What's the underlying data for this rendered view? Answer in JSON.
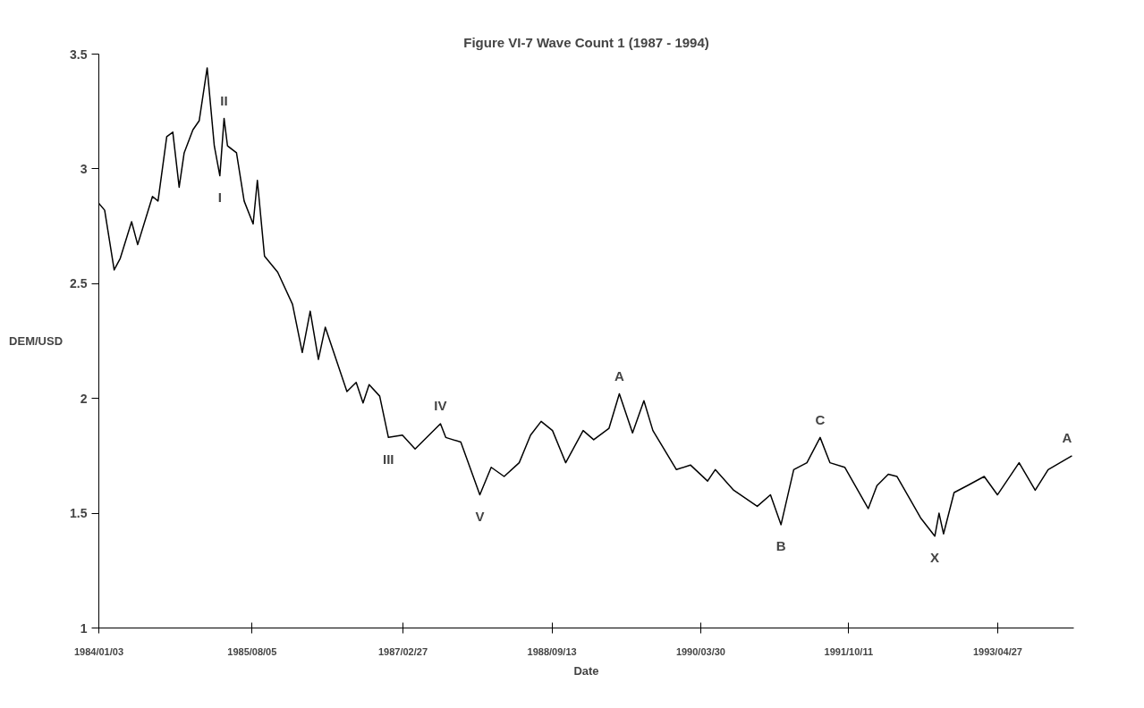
{
  "chart_data": {
    "type": "line",
    "title": "Figure VI-7 Wave Count 1 (1987 - 1994)",
    "xlabel": "Date",
    "ylabel": "DEM/USD",
    "x": [
      "1984-01-03",
      "1984-01-25",
      "1984-03-01",
      "1984-03-24",
      "1984-05-06",
      "1984-05-29",
      "1984-07-24",
      "1984-08-14",
      "1984-09-16",
      "1984-10-09",
      "1984-11-02",
      "1984-11-21",
      "1984-12-24",
      "1985-01-17",
      "1985-02-16",
      "1985-03-15",
      "1985-04-05",
      "1985-04-21",
      "1985-05-04",
      "1985-06-07",
      "1985-07-06",
      "1985-08-09",
      "1985-08-25",
      "1985-09-21",
      "1985-11-10",
      "1986-01-05",
      "1986-02-11",
      "1986-03-13",
      "1986-04-13",
      "1986-05-09",
      "1986-07-30",
      "1986-09-03",
      "1986-09-29",
      "1986-10-22",
      "1986-12-01",
      "1987-01-03",
      "1987-02-25",
      "1987-04-14",
      "1987-07-19",
      "1987-08-08",
      "1987-10-04",
      "1987-12-15",
      "1988-01-27",
      "1988-03-16",
      "1988-05-12",
      "1988-06-24",
      "1988-08-03",
      "1988-09-15",
      "1988-11-04",
      "1989-01-09",
      "1989-02-18",
      "1989-04-17",
      "1989-05-26",
      "1989-07-15",
      "1989-08-27",
      "1989-09-30",
      "1989-12-28",
      "1990-02-19",
      "1990-04-25",
      "1990-05-24",
      "1990-08-02",
      "1990-10-30",
      "1990-12-19",
      "1991-01-28",
      "1991-03-17",
      "1991-05-06",
      "1991-06-25",
      "1991-08-01",
      "1991-09-26",
      "1991-12-24",
      "1992-01-26",
      "1992-03-09",
      "1992-04-11",
      "1992-07-09",
      "1992-09-01",
      "1992-09-17",
      "1992-10-04",
      "1992-11-13",
      "1993-01-02",
      "1993-03-07",
      "1993-04-26",
      "1993-07-17",
      "1993-09-16",
      "1993-11-04",
      "1994-02-02"
    ],
    "series": [
      {
        "color": "#000000",
        "values": [
          2.85,
          2.82,
          2.56,
          2.61,
          2.77,
          2.67,
          2.88,
          2.86,
          3.14,
          3.16,
          2.92,
          3.07,
          3.17,
          3.21,
          3.44,
          3.1,
          2.97,
          3.22,
          3.1,
          3.07,
          2.86,
          2.76,
          2.95,
          2.62,
          2.55,
          2.41,
          2.2,
          2.38,
          2.17,
          2.31,
          2.03,
          2.07,
          1.98,
          2.06,
          2.01,
          1.83,
          1.84,
          1.78,
          1.89,
          1.83,
          1.81,
          1.58,
          1.7,
          1.66,
          1.72,
          1.84,
          1.9,
          1.86,
          1.72,
          1.86,
          1.82,
          1.87,
          2.02,
          1.85,
          1.99,
          1.86,
          1.69,
          1.71,
          1.64,
          1.69,
          1.6,
          1.53,
          1.58,
          1.45,
          1.69,
          1.72,
          1.83,
          1.72,
          1.7,
          1.52,
          1.62,
          1.67,
          1.66,
          1.48,
          1.4,
          1.5,
          1.41,
          1.59,
          1.62,
          1.66,
          1.58,
          1.72,
          1.6,
          1.69,
          1.75
        ]
      }
    ],
    "xlim": [
      "1984-01-03",
      "1994-02-09"
    ],
    "xticks": [
      {
        "value": "1984-01-03",
        "label": "1984/01/03"
      },
      {
        "value": "1985-08-05",
        "label": "1985/08/05"
      },
      {
        "value": "1987-02-27",
        "label": "1987/02/27"
      },
      {
        "value": "1988-09-13",
        "label": "1988/09/13"
      },
      {
        "value": "1990-03-30",
        "label": "1990/03/30"
      },
      {
        "value": "1991-10-11",
        "label": "1991/10/11"
      },
      {
        "value": "1993-04-27",
        "label": "1993/04/27"
      }
    ],
    "ylim": [
      1,
      3.5
    ],
    "yticks": [
      1,
      1.5,
      2,
      2.5,
      3,
      3.5
    ],
    "annotations": [
      {
        "text": "I",
        "x": "1985-04-05",
        "y": 2.97
      },
      {
        "text": "II",
        "x": "1985-04-21",
        "y": 3.22
      },
      {
        "text": "III",
        "x": "1987-01-03",
        "y": 1.83
      },
      {
        "text": "IV",
        "x": "1987-07-19",
        "y": 1.89
      },
      {
        "text": "V",
        "x": "1987-12-15",
        "y": 1.58
      },
      {
        "text": "A",
        "x": "1989-05-26",
        "y": 2.02
      },
      {
        "text": "B",
        "x": "1991-01-28",
        "y": 1.45
      },
      {
        "text": "C",
        "x": "1991-06-25",
        "y": 1.83
      },
      {
        "text": "X",
        "x": "1992-09-01",
        "y": 1.4
      },
      {
        "text": "A",
        "x": "1994-02-02",
        "y": 1.75
      }
    ]
  }
}
